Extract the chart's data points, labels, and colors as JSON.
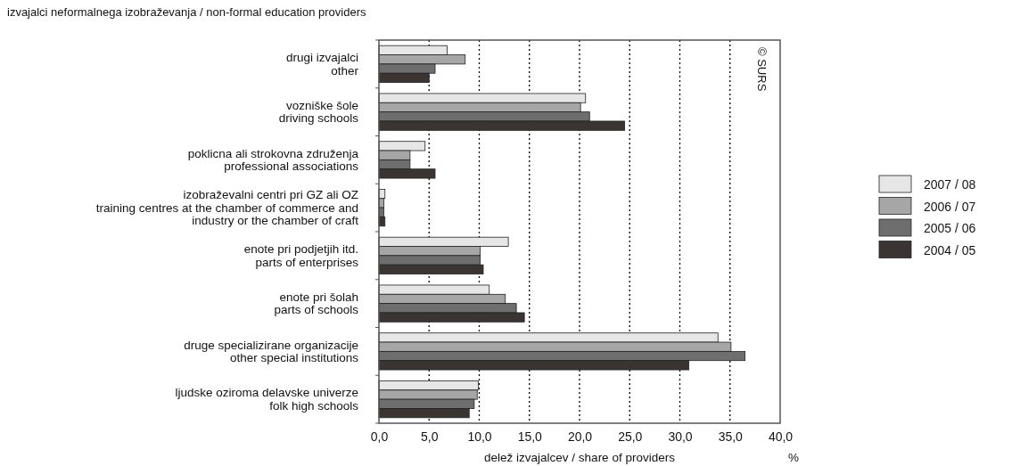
{
  "chart_data": {
    "type": "bar",
    "orientation": "horizontal",
    "title": "izvajalci neformalnega izobraževanja / non-formal education providers",
    "xlabel": "delež izvajalcev / share of providers",
    "categories": [
      "drugi izvajalci\nother",
      "vozniške šole\ndriving schools",
      "poklicna ali strokovna združenja\nprofessional associations",
      "izobraževalni centri pri GZ ali OZ\ntraining centres at the chamber of commerce and\nindustry or the chamber of craft",
      "enote pri podjetjih itd.\nparts of enterprises",
      "enote pri šolah\nparts of schools",
      "druge specializirane organizacije\nother special institutions",
      "ljudske oziroma delavske univerze\nfolk high schools"
    ],
    "series": [
      {
        "name": "2007 / 08",
        "color": "#e6e6e6",
        "values": [
          6.8,
          20.6,
          4.6,
          0.6,
          12.9,
          11.0,
          33.8,
          9.9
        ]
      },
      {
        "name": "2006 / 07",
        "color": "#a6a6a6",
        "values": [
          8.6,
          20.1,
          3.1,
          0.5,
          10.1,
          12.6,
          35.1,
          9.8
        ]
      },
      {
        "name": "2005 / 06",
        "color": "#6e6e6e",
        "values": [
          5.6,
          21.0,
          3.1,
          0.5,
          10.1,
          13.7,
          36.5,
          9.5
        ]
      },
      {
        "name": "2004 / 05",
        "color": "#3a3533",
        "values": [
          5.0,
          24.5,
          5.6,
          0.6,
          10.4,
          14.5,
          30.9,
          9.0
        ]
      }
    ],
    "xlim": [
      0,
      40
    ],
    "xticks": [
      {
        "value": 0,
        "label": "0,0"
      },
      {
        "value": 5,
        "label": "5,0"
      },
      {
        "value": 10,
        "label": "10,0"
      },
      {
        "value": 15,
        "label": "15,0"
      },
      {
        "value": 20,
        "label": "20,0"
      },
      {
        "value": 25,
        "label": "25,0"
      },
      {
        "value": 30,
        "label": "30,0"
      },
      {
        "value": 35,
        "label": "35,0"
      },
      {
        "value": 40,
        "label": "40,0"
      }
    ],
    "grid": "x",
    "legend": "right",
    "annotations": [
      "© SURS",
      "%"
    ]
  }
}
